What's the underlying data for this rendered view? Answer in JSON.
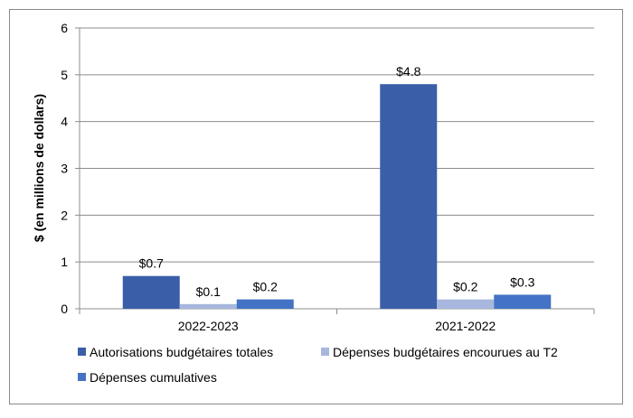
{
  "chart_data": {
    "type": "bar",
    "title": "",
    "xlabel": "",
    "ylabel": "$ (en millions de dollars)",
    "ylim": [
      0,
      6
    ],
    "yticks": [
      0,
      1,
      2,
      3,
      4,
      5,
      6
    ],
    "grid": true,
    "legend_position": "bottom",
    "categories": [
      "2022-2023",
      "2021-2022"
    ],
    "series": [
      {
        "name": "Autorisations budgétaires totales",
        "color": "#3A5FA8",
        "values": [
          0.7,
          4.8
        ],
        "labels": [
          "$0.7",
          "$4.8"
        ]
      },
      {
        "name": "Dépenses budgétaires encourues au T2",
        "color": "#A7B7DE",
        "values": [
          0.1,
          0.2
        ],
        "labels": [
          "$0.1",
          "$0.2"
        ]
      },
      {
        "name": "Dépenses cumulatives",
        "color": "#4472C4",
        "values": [
          0.2,
          0.3
        ],
        "labels": [
          "$0.2",
          "$0.3"
        ]
      }
    ]
  }
}
